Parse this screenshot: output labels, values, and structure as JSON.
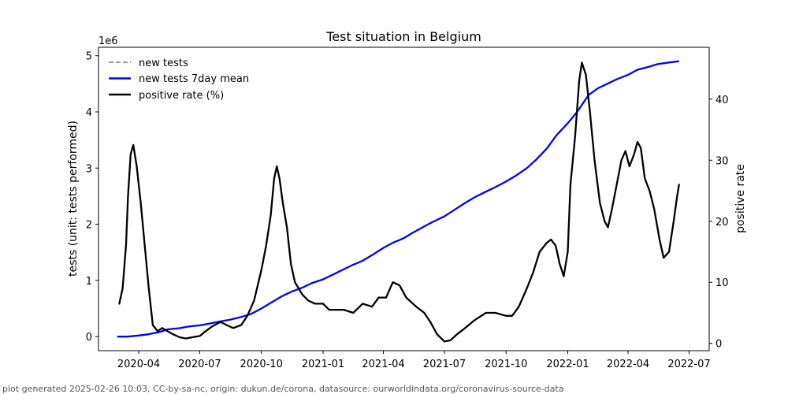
{
  "chart_data": {
    "type": "line",
    "title": "Test situation in Belgium",
    "xlabel": "",
    "ylabel": "tests (unit: tests performed)",
    "y_scale_label": "1e6",
    "y2label": "positive rate",
    "xlim": [
      "2020-02-01",
      "2022-07-31"
    ],
    "ylim": [
      -0.25,
      5.15
    ],
    "y2lim": [
      -1.2,
      48.5
    ],
    "x_ticks": [
      "2020-04",
      "2020-07",
      "2020-10",
      "2021-01",
      "2021-04",
      "2021-07",
      "2021-10",
      "2022-01",
      "2022-04",
      "2022-07"
    ],
    "y_ticks": [
      0,
      1,
      2,
      3,
      4,
      5
    ],
    "y2_ticks": [
      0,
      10,
      20,
      30,
      40
    ],
    "grid": false,
    "legend_position": "top-left",
    "series": [
      {
        "name": "new tests",
        "axis": "left",
        "style": "dashed",
        "color": "#808080",
        "points": []
      },
      {
        "name": "new tests 7day mean",
        "axis": "left",
        "style": "solid",
        "color": "#0000ff",
        "points": [
          [
            "2020-03-01",
            0.0
          ],
          [
            "2020-03-15",
            0.0
          ],
          [
            "2020-04-01",
            0.02
          ],
          [
            "2020-04-15",
            0.04
          ],
          [
            "2020-05-01",
            0.08
          ],
          [
            "2020-05-15",
            0.13
          ],
          [
            "2020-06-01",
            0.15
          ],
          [
            "2020-06-15",
            0.18
          ],
          [
            "2020-07-01",
            0.2
          ],
          [
            "2020-07-15",
            0.23
          ],
          [
            "2020-08-01",
            0.27
          ],
          [
            "2020-08-15",
            0.3
          ],
          [
            "2020-09-01",
            0.35
          ],
          [
            "2020-09-15",
            0.4
          ],
          [
            "2020-10-01",
            0.5
          ],
          [
            "2020-10-15",
            0.6
          ],
          [
            "2020-11-01",
            0.72
          ],
          [
            "2020-11-15",
            0.8
          ],
          [
            "2020-12-01",
            0.87
          ],
          [
            "2020-12-15",
            0.95
          ],
          [
            "2021-01-01",
            1.02
          ],
          [
            "2021-01-15",
            1.1
          ],
          [
            "2021-02-01",
            1.2
          ],
          [
            "2021-02-15",
            1.28
          ],
          [
            "2021-03-01",
            1.35
          ],
          [
            "2021-03-15",
            1.45
          ],
          [
            "2021-04-01",
            1.58
          ],
          [
            "2021-04-15",
            1.67
          ],
          [
            "2021-05-01",
            1.75
          ],
          [
            "2021-05-15",
            1.85
          ],
          [
            "2021-06-01",
            1.96
          ],
          [
            "2021-06-15",
            2.05
          ],
          [
            "2021-07-01",
            2.14
          ],
          [
            "2021-07-15",
            2.25
          ],
          [
            "2021-08-01",
            2.38
          ],
          [
            "2021-08-15",
            2.48
          ],
          [
            "2021-09-01",
            2.58
          ],
          [
            "2021-09-15",
            2.66
          ],
          [
            "2021-10-01",
            2.76
          ],
          [
            "2021-10-15",
            2.86
          ],
          [
            "2021-11-01",
            3.0
          ],
          [
            "2021-11-15",
            3.15
          ],
          [
            "2021-12-01",
            3.35
          ],
          [
            "2021-12-15",
            3.58
          ],
          [
            "2022-01-01",
            3.8
          ],
          [
            "2022-01-15",
            4.0
          ],
          [
            "2022-02-01",
            4.3
          ],
          [
            "2022-02-15",
            4.42
          ],
          [
            "2022-03-01",
            4.5
          ],
          [
            "2022-03-15",
            4.58
          ],
          [
            "2022-04-01",
            4.66
          ],
          [
            "2022-04-15",
            4.75
          ],
          [
            "2022-05-01",
            4.8
          ],
          [
            "2022-05-15",
            4.85
          ],
          [
            "2022-06-01",
            4.88
          ],
          [
            "2022-06-15",
            4.9
          ]
        ]
      },
      {
        "name": "positive rate (%)",
        "axis": "right",
        "style": "solid",
        "color": "#000000",
        "points": [
          [
            "2020-03-03",
            6.5
          ],
          [
            "2020-03-08",
            9.0
          ],
          [
            "2020-03-13",
            16.0
          ],
          [
            "2020-03-16",
            24.0
          ],
          [
            "2020-03-20",
            31.0
          ],
          [
            "2020-03-24",
            32.5
          ],
          [
            "2020-03-29",
            29.0
          ],
          [
            "2020-04-04",
            23.0
          ],
          [
            "2020-04-10",
            16.0
          ],
          [
            "2020-04-16",
            9.0
          ],
          [
            "2020-04-22",
            3.0
          ],
          [
            "2020-04-29",
            2.0
          ],
          [
            "2020-05-06",
            2.5
          ],
          [
            "2020-05-14",
            2.0
          ],
          [
            "2020-05-22",
            1.5
          ],
          [
            "2020-06-01",
            1.0
          ],
          [
            "2020-06-10",
            0.8
          ],
          [
            "2020-06-20",
            1.0
          ],
          [
            "2020-07-01",
            1.2
          ],
          [
            "2020-07-10",
            2.0
          ],
          [
            "2020-07-20",
            2.8
          ],
          [
            "2020-08-01",
            3.5
          ],
          [
            "2020-08-10",
            3.0
          ],
          [
            "2020-08-20",
            2.5
          ],
          [
            "2020-09-01",
            3.0
          ],
          [
            "2020-09-10",
            4.5
          ],
          [
            "2020-09-20",
            7.0
          ],
          [
            "2020-10-01",
            12.0
          ],
          [
            "2020-10-08",
            16.0
          ],
          [
            "2020-10-15",
            21.0
          ],
          [
            "2020-10-20",
            27.0
          ],
          [
            "2020-10-24",
            29.0
          ],
          [
            "2020-10-28",
            27.0
          ],
          [
            "2020-11-02",
            23.0
          ],
          [
            "2020-11-08",
            19.0
          ],
          [
            "2020-11-14",
            13.0
          ],
          [
            "2020-11-20",
            10.0
          ],
          [
            "2020-12-01",
            8.0
          ],
          [
            "2020-12-10",
            7.0
          ],
          [
            "2020-12-20",
            6.5
          ],
          [
            "2021-01-01",
            6.5
          ],
          [
            "2021-01-10",
            5.5
          ],
          [
            "2021-01-20",
            5.5
          ],
          [
            "2021-02-01",
            5.5
          ],
          [
            "2021-02-15",
            5.0
          ],
          [
            "2021-03-01",
            6.5
          ],
          [
            "2021-03-15",
            6.0
          ],
          [
            "2021-03-25",
            7.5
          ],
          [
            "2021-04-05",
            7.5
          ],
          [
            "2021-04-15",
            10.0
          ],
          [
            "2021-04-25",
            9.5
          ],
          [
            "2021-05-05",
            7.5
          ],
          [
            "2021-05-20",
            6.0
          ],
          [
            "2021-06-01",
            5.0
          ],
          [
            "2021-06-10",
            3.5
          ],
          [
            "2021-06-20",
            1.5
          ],
          [
            "2021-07-01",
            0.3
          ],
          [
            "2021-07-10",
            0.5
          ],
          [
            "2021-07-20",
            1.5
          ],
          [
            "2021-08-01",
            2.5
          ],
          [
            "2021-08-15",
            3.8
          ],
          [
            "2021-09-01",
            5.0
          ],
          [
            "2021-09-15",
            5.0
          ],
          [
            "2021-10-01",
            4.5
          ],
          [
            "2021-10-10",
            4.5
          ],
          [
            "2021-10-20",
            6.0
          ],
          [
            "2021-11-01",
            9.0
          ],
          [
            "2021-11-10",
            11.5
          ],
          [
            "2021-11-20",
            15.0
          ],
          [
            "2021-12-01",
            16.5
          ],
          [
            "2021-12-07",
            17.0
          ],
          [
            "2021-12-14",
            16.0
          ],
          [
            "2021-12-20",
            13.0
          ],
          [
            "2021-12-26",
            11.0
          ],
          [
            "2022-01-01",
            15.0
          ],
          [
            "2022-01-05",
            26.0
          ],
          [
            "2022-01-12",
            34.0
          ],
          [
            "2022-01-18",
            43.0
          ],
          [
            "2022-01-22",
            46.0
          ],
          [
            "2022-01-28",
            44.0
          ],
          [
            "2022-02-03",
            38.0
          ],
          [
            "2022-02-10",
            30.0
          ],
          [
            "2022-02-18",
            23.0
          ],
          [
            "2022-02-25",
            20.0
          ],
          [
            "2022-03-02",
            19.0
          ],
          [
            "2022-03-08",
            22.0
          ],
          [
            "2022-03-15",
            26.0
          ],
          [
            "2022-03-22",
            30.0
          ],
          [
            "2022-03-28",
            31.5
          ],
          [
            "2022-04-03",
            29.0
          ],
          [
            "2022-04-10",
            31.0
          ],
          [
            "2022-04-15",
            33.0
          ],
          [
            "2022-04-20",
            32.0
          ],
          [
            "2022-04-26",
            27.0
          ],
          [
            "2022-05-03",
            25.0
          ],
          [
            "2022-05-10",
            22.0
          ],
          [
            "2022-05-18",
            17.0
          ],
          [
            "2022-05-24",
            14.0
          ],
          [
            "2022-06-01",
            15.0
          ],
          [
            "2022-06-08",
            20.0
          ],
          [
            "2022-06-13",
            24.0
          ],
          [
            "2022-06-16",
            26.0
          ]
        ]
      }
    ]
  },
  "footer": "plot generated 2025-02-26 10:03, CC-by-sa-nc, origin: dukun.de/corona, datasource: ourworldindata.org/coronavirus-source-data"
}
